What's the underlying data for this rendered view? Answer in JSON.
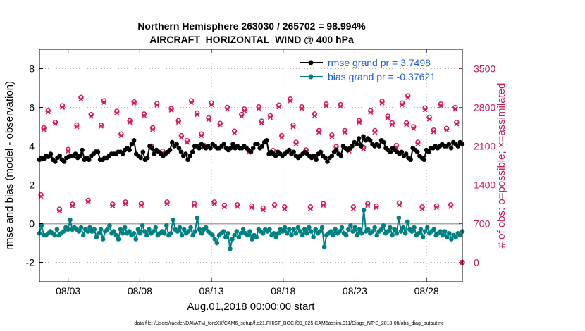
{
  "chart_data": {
    "type": "line",
    "title": "Northern Hemisphere 263030 / 265702 = 98.994%",
    "subtitle": "AIRCRAFT_HORIZONTAL_WIND @ 400 hPa",
    "xlabel": "Aug.01,2018 00:00:00 start",
    "ylabel": "rmse and bias (model - observation)",
    "y2label": "# of obs: o=possible; ×=assimilated",
    "footnote": "data file: /Users/raeder/DAI/ATM_forcXX/CAM6_setup/f.e21.FHIST_BGC.f09_025.CAM6assim.011/Diags_NTrS_2018-08/obs_diag_output.nc",
    "xlim": [
      1,
      30.5
    ],
    "ylim": [
      -3,
      9
    ],
    "y2lim": [
      -350,
      3850
    ],
    "x_ticks": [
      3,
      8,
      13,
      18,
      23,
      28
    ],
    "x_tick_labels": [
      "08/03",
      "08/08",
      "08/13",
      "08/18",
      "08/23",
      "08/28"
    ],
    "y_ticks": [
      -2,
      0,
      2,
      4,
      6,
      8
    ],
    "y_tick_labels": [
      "-2",
      "0",
      "2",
      "4",
      "6",
      "8"
    ],
    "y2_ticks": [
      0,
      700,
      1400,
      2100,
      2800,
      3500
    ],
    "y2_tick_labels": [
      "0",
      "700",
      "1400",
      "2100",
      "2800",
      "3500"
    ],
    "zero_line": 0,
    "colors": {
      "rmse": "#000000",
      "bias": "#008080",
      "obs": "#d6195b",
      "zero": "#aaaaaa",
      "legend_text": "#1a5fd6"
    },
    "legend": {
      "placement": "top-right",
      "entries": [
        "rmse grand pr = 3.7498",
        "bias grand pr = -0.37621"
      ]
    },
    "series": [
      {
        "name": "rmse",
        "values": [
          3.3,
          3.4,
          3.35,
          3.5,
          3.45,
          3.6,
          3.3,
          3.2,
          3.4,
          3.5,
          3.3,
          3.2,
          3.4,
          3.45,
          3.5,
          3.5,
          3.6,
          3.4,
          3.5,
          3.8,
          3.3,
          3.4,
          3.3,
          3.5,
          3.6,
          3.7,
          3.7,
          3.3,
          3.3,
          3.4,
          3.4,
          3.5,
          3.6,
          3.6,
          3.6,
          3.7,
          3.7,
          3.6,
          3.8,
          3.9,
          3.8,
          4.1,
          4.3,
          3.6,
          3.5,
          3.4,
          3.7,
          3.3,
          3.4,
          4.0,
          3.9,
          3.6,
          3.8,
          3.7,
          3.6,
          3.5,
          3.6,
          3.7,
          3.8,
          4.2,
          4.0,
          4.1,
          3.9,
          3.7,
          3.5,
          3.6,
          3.3,
          3.5,
          3.7,
          4.0,
          4.0,
          3.9,
          4.1,
          4.0,
          3.9,
          4.0,
          3.9,
          4.1,
          4.0,
          3.9,
          3.9,
          4.0,
          4.1,
          3.9,
          3.8,
          3.9,
          4.1,
          3.9,
          4.0,
          3.9,
          3.9,
          4.0,
          3.9,
          3.8,
          3.7,
          3.9,
          4.1,
          4.1,
          3.9,
          4.0,
          4.2,
          4.3,
          3.6,
          3.7,
          3.6,
          3.5,
          3.7,
          3.6,
          3.5,
          3.6,
          3.7,
          3.8,
          3.6,
          3.7,
          3.5,
          3.4,
          3.5,
          3.6,
          3.7,
          3.6,
          3.5,
          3.4,
          3.5,
          3.3,
          3.6,
          3.7,
          3.5,
          3.4,
          3.2,
          3.4,
          3.5,
          3.7,
          3.8,
          3.6,
          3.5,
          4.0,
          3.9,
          3.8,
          3.9,
          4.0,
          4.2,
          4.1,
          4.4,
          4.0,
          4.5,
          4.3,
          4.4,
          4.3,
          4.1,
          4.0,
          4.1,
          4.0,
          4.3,
          4.2,
          3.9,
          3.8,
          3.7,
          3.9,
          3.8,
          3.7,
          3.6,
          3.7,
          3.5,
          3.6,
          3.4,
          3.3,
          3.9,
          3.8,
          3.7,
          3.5,
          3.4,
          3.3,
          3.8,
          3.7,
          3.9,
          3.9,
          4.0,
          3.9,
          4.0,
          4.1,
          4.0,
          4.0,
          4.1,
          3.9,
          4.2,
          4.1,
          4.0,
          4.2,
          4.1
        ]
      },
      {
        "name": "bias",
        "values": [
          -0.5,
          -0.1,
          -0.6,
          -0.6,
          -0.5,
          -0.4,
          -0.5,
          -0.6,
          -0.3,
          -0.6,
          -0.5,
          -0.4,
          -0.2,
          -0.3,
          0.2,
          -0.3,
          -0.2,
          -0.3,
          -0.4,
          -0.2,
          -0.6,
          -0.3,
          -0.4,
          -0.2,
          -0.4,
          -0.3,
          -0.7,
          -0.5,
          -0.3,
          -0.8,
          -0.4,
          -0.3,
          -0.1,
          -0.5,
          -0.4,
          -0.6,
          -0.8,
          -0.3,
          -0.5,
          -0.2,
          -0.5,
          -0.4,
          -0.6,
          -0.5,
          -0.8,
          -0.3,
          -0.5,
          -0.1,
          -0.4,
          -0.6,
          -0.3,
          -0.5,
          -0.4,
          -0.2,
          -0.6,
          -0.5,
          -0.4,
          -0.5,
          -0.1,
          -0.6,
          -0.5,
          0.2,
          -0.3,
          -0.4,
          -0.2,
          -0.6,
          -0.3,
          -0.5,
          -0.4,
          -0.2,
          -0.6,
          -0.4,
          0.3,
          -0.3,
          -0.5,
          -0.3,
          -0.2,
          -0.4,
          -0.5,
          -0.6,
          -0.8,
          -1.0,
          -0.6,
          -0.5,
          -0.4,
          -0.7,
          -0.5,
          -1.3,
          -0.8,
          -0.6,
          -0.4,
          -0.7,
          -0.5,
          -0.3,
          -0.5,
          -0.6,
          -0.4,
          -0.8,
          -0.6,
          -0.7,
          -0.3,
          -0.4,
          -0.5,
          -0.3,
          -0.4,
          -0.3,
          -0.6,
          -0.5,
          -0.7,
          -0.5,
          -0.3,
          -0.4,
          -0.2,
          -0.5,
          -0.3,
          -0.6,
          -0.3,
          -0.5,
          -0.2,
          -0.4,
          -0.6,
          -0.3,
          -0.5,
          -0.2,
          -0.4,
          -0.7,
          -0.3,
          -0.5,
          -0.4,
          -0.2,
          -1.2,
          -0.6,
          -0.5,
          -0.4,
          -0.6,
          -0.3,
          -0.5,
          -0.4,
          -0.2,
          -0.5,
          -0.6,
          -0.3,
          -0.1,
          -0.4,
          -0.2,
          -0.6,
          -0.3,
          -0.5,
          0.7,
          -0.4,
          -0.3,
          -0.5,
          -0.4,
          -0.2,
          -0.6,
          -0.4,
          -0.3,
          -0.1,
          -0.5,
          -0.4,
          -0.2,
          -0.6,
          -0.3,
          -0.5,
          0.3,
          -0.4,
          -0.2,
          -0.5,
          0.1,
          -0.3,
          -0.4,
          -0.2,
          -0.6,
          -0.5,
          -0.3,
          -0.7,
          -0.4,
          -0.2,
          -0.5,
          -0.4,
          -0.3,
          -0.6,
          -0.5,
          -0.4,
          -0.6,
          -0.4,
          -0.7,
          -0.5,
          -0.8,
          -0.6,
          -0.7,
          -0.5,
          -0.6,
          -0.4
        ]
      },
      {
        "name": "obs_possible",
        "points": [
          [
            1.1,
            1220
          ],
          [
            1.3,
            2430
          ],
          [
            1.6,
            2740
          ],
          [
            2.1,
            2530
          ],
          [
            2.4,
            960
          ],
          [
            2.6,
            2830
          ],
          [
            3.0,
            2040
          ],
          [
            3.3,
            1050
          ],
          [
            3.6,
            2480
          ],
          [
            3.9,
            2980
          ],
          [
            4.4,
            1120
          ],
          [
            4.6,
            2670
          ],
          [
            5.0,
            2010
          ],
          [
            5.3,
            2480
          ],
          [
            5.5,
            2920
          ],
          [
            6.1,
            1050
          ],
          [
            6.4,
            2730
          ],
          [
            6.7,
            2320
          ],
          [
            7.0,
            1090
          ],
          [
            7.3,
            2560
          ],
          [
            7.6,
            2900
          ],
          [
            8.1,
            1060
          ],
          [
            8.3,
            2680
          ],
          [
            8.8,
            2100
          ],
          [
            8.9,
            2430
          ],
          [
            9.2,
            2870
          ],
          [
            9.6,
            2010
          ],
          [
            9.9,
            1090
          ],
          [
            10.2,
            2780
          ],
          [
            10.7,
            2560
          ],
          [
            10.9,
            2290
          ],
          [
            11.3,
            2200
          ],
          [
            11.6,
            2920
          ],
          [
            11.8,
            1060
          ],
          [
            12.0,
            2700
          ],
          [
            12.3,
            2320
          ],
          [
            12.5,
            2110
          ],
          [
            12.8,
            2610
          ],
          [
            13.0,
            2880
          ],
          [
            13.2,
            1090
          ],
          [
            13.6,
            2510
          ],
          [
            13.9,
            1030
          ],
          [
            14.1,
            2800
          ],
          [
            14.6,
            2370
          ],
          [
            14.8,
            1040
          ],
          [
            15.1,
            2670
          ],
          [
            15.3,
            2770
          ],
          [
            15.6,
            2020
          ],
          [
            15.8,
            1020
          ],
          [
            16.3,
            2810
          ],
          [
            16.5,
            2550
          ],
          [
            16.6,
            980
          ],
          [
            17.1,
            2650
          ],
          [
            17.3,
            2020
          ],
          [
            17.4,
            1040
          ],
          [
            17.7,
            2840
          ],
          [
            17.9,
            2290
          ],
          [
            18.1,
            1000
          ],
          [
            18.5,
            2950
          ],
          [
            18.7,
            2480
          ],
          [
            18.9,
            2170
          ],
          [
            19.3,
            2810
          ],
          [
            19.6,
            2030
          ],
          [
            19.9,
            1000
          ],
          [
            20.2,
            2680
          ],
          [
            20.5,
            2380
          ],
          [
            20.8,
            1060
          ],
          [
            21.0,
            2860
          ],
          [
            21.4,
            2300
          ],
          [
            21.7,
            2090
          ],
          [
            22.0,
            2850
          ],
          [
            22.3,
            2380
          ],
          [
            22.6,
            2040
          ],
          [
            22.9,
            1000
          ],
          [
            23.3,
            2560
          ],
          [
            23.6,
            2080
          ],
          [
            23.9,
            1060
          ],
          [
            24.1,
            2740
          ],
          [
            24.4,
            2380
          ],
          [
            24.5,
            1020
          ],
          [
            24.9,
            2910
          ],
          [
            25.3,
            2640
          ],
          [
            25.6,
            2520
          ],
          [
            25.9,
            2110
          ],
          [
            26.1,
            1070
          ],
          [
            26.3,
            2880
          ],
          [
            26.6,
            2520
          ],
          [
            26.7,
            3010
          ],
          [
            27.1,
            2450
          ],
          [
            27.4,
            2170
          ],
          [
            27.7,
            1000
          ],
          [
            27.9,
            2790
          ],
          [
            28.2,
            2620
          ],
          [
            28.5,
            2390
          ],
          [
            28.7,
            1020
          ],
          [
            29.0,
            2860
          ],
          [
            29.4,
            2420
          ],
          [
            29.7,
            1040
          ],
          [
            30.0,
            2800
          ],
          [
            30.1,
            2530
          ],
          [
            30.5,
            0
          ]
        ]
      },
      {
        "name": "obs_assimilated",
        "points": [
          [
            1.1,
            1190
          ],
          [
            1.3,
            2400
          ],
          [
            1.6,
            2720
          ],
          [
            2.1,
            2510
          ],
          [
            2.4,
            930
          ],
          [
            2.6,
            2800
          ],
          [
            3.0,
            2010
          ],
          [
            3.3,
            1020
          ],
          [
            3.6,
            2450
          ],
          [
            3.9,
            2950
          ],
          [
            4.4,
            1100
          ],
          [
            4.6,
            2640
          ],
          [
            5.0,
            1980
          ],
          [
            5.3,
            2460
          ],
          [
            5.5,
            2890
          ],
          [
            6.1,
            1020
          ],
          [
            6.4,
            2700
          ],
          [
            6.7,
            2290
          ],
          [
            7.0,
            1060
          ],
          [
            7.3,
            2530
          ],
          [
            7.6,
            2880
          ],
          [
            8.1,
            1030
          ],
          [
            8.3,
            2650
          ],
          [
            8.8,
            2080
          ],
          [
            8.9,
            2400
          ],
          [
            9.2,
            2840
          ],
          [
            9.6,
            1980
          ],
          [
            9.9,
            1060
          ],
          [
            10.2,
            2750
          ],
          [
            10.7,
            2530
          ],
          [
            10.9,
            2260
          ],
          [
            11.3,
            2170
          ],
          [
            11.6,
            2890
          ],
          [
            11.8,
            1030
          ],
          [
            12.0,
            2670
          ],
          [
            12.3,
            2290
          ],
          [
            12.5,
            2080
          ],
          [
            12.8,
            2580
          ],
          [
            13.0,
            2850
          ],
          [
            13.2,
            1060
          ],
          [
            13.6,
            2480
          ],
          [
            13.9,
            1000
          ],
          [
            14.1,
            2770
          ],
          [
            14.6,
            2340
          ],
          [
            14.8,
            1010
          ],
          [
            15.1,
            2640
          ],
          [
            15.3,
            2740
          ],
          [
            15.6,
            1990
          ],
          [
            15.8,
            990
          ],
          [
            16.3,
            2780
          ],
          [
            16.5,
            2520
          ],
          [
            16.6,
            950
          ],
          [
            17.1,
            2620
          ],
          [
            17.3,
            1990
          ],
          [
            17.4,
            1010
          ],
          [
            17.7,
            2810
          ],
          [
            17.9,
            2260
          ],
          [
            18.1,
            970
          ],
          [
            18.5,
            2920
          ],
          [
            18.7,
            2450
          ],
          [
            18.9,
            2140
          ],
          [
            19.3,
            2780
          ],
          [
            19.6,
            2000
          ],
          [
            19.9,
            970
          ],
          [
            20.2,
            2650
          ],
          [
            20.5,
            2350
          ],
          [
            20.8,
            1030
          ],
          [
            21.0,
            2830
          ],
          [
            21.4,
            2270
          ],
          [
            21.7,
            2060
          ],
          [
            22.0,
            2820
          ],
          [
            22.3,
            2350
          ],
          [
            22.6,
            2010
          ],
          [
            22.9,
            970
          ],
          [
            23.3,
            2530
          ],
          [
            23.6,
            2050
          ],
          [
            23.9,
            1030
          ],
          [
            24.1,
            2710
          ],
          [
            24.4,
            2350
          ],
          [
            24.5,
            990
          ],
          [
            24.9,
            2880
          ],
          [
            25.3,
            2610
          ],
          [
            25.6,
            2490
          ],
          [
            25.9,
            2080
          ],
          [
            26.1,
            1040
          ],
          [
            26.3,
            2850
          ],
          [
            26.6,
            2490
          ],
          [
            26.7,
            2980
          ],
          [
            27.1,
            2420
          ],
          [
            27.4,
            2140
          ],
          [
            27.7,
            970
          ],
          [
            27.9,
            2760
          ],
          [
            28.2,
            2590
          ],
          [
            28.5,
            2360
          ],
          [
            28.7,
            990
          ],
          [
            29.0,
            2830
          ],
          [
            29.4,
            2390
          ],
          [
            29.7,
            1010
          ],
          [
            30.0,
            2770
          ],
          [
            30.1,
            2500
          ],
          [
            30.5,
            0
          ]
        ]
      }
    ]
  }
}
